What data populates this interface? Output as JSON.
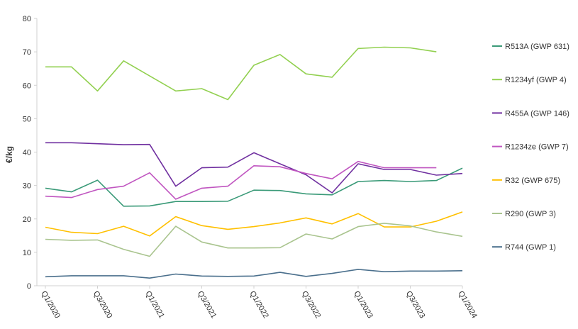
{
  "chart_data": {
    "type": "line",
    "title": "",
    "xlabel": "",
    "ylabel": "€/kg",
    "ylim": [
      0,
      80
    ],
    "yticks": [
      0,
      10,
      20,
      30,
      40,
      50,
      60,
      70,
      80
    ],
    "grid": false,
    "legend_position": "right",
    "x_tick_labels": [
      "Q1/2020",
      "Q3/2020",
      "Q1/2021",
      "Q3/2021",
      "Q1/2022",
      "Q3/2022",
      "Q1/2023",
      "Q3/2023",
      "Q1/2024"
    ],
    "x_tick_indices": [
      0,
      2,
      4,
      6,
      8,
      10,
      12,
      14,
      16
    ],
    "x_count": 17,
    "series": [
      {
        "name": "R513A (GWP 631)",
        "color": "#3a9a78",
        "values": [
          29.2,
          28.1,
          31.6,
          23.8,
          23.9,
          25.2,
          25.2,
          25.3,
          28.6,
          28.5,
          27.5,
          27.2,
          31.2,
          31.5,
          31.2,
          31.5,
          35.2
        ]
      },
      {
        "name": "R1234yf (GWP 4)",
        "color": "#92d050",
        "values": [
          65.5,
          65.5,
          58.3,
          67.3,
          62.8,
          58.3,
          59.0,
          55.7,
          66.0,
          69.2,
          63.4,
          62.4,
          71.0,
          71.4,
          71.2,
          70.0,
          null
        ]
      },
      {
        "name": "R455A (GWP 146)",
        "color": "#7030a0",
        "values": [
          42.8,
          42.8,
          42.5,
          42.2,
          42.3,
          29.8,
          35.3,
          35.5,
          39.8,
          36.5,
          33.2,
          27.8,
          36.5,
          34.8,
          34.8,
          33.1,
          33.6
        ]
      },
      {
        "name": "R1234ze (GWP 7)",
        "color": "#c055c0",
        "values": [
          26.8,
          26.4,
          28.8,
          29.8,
          33.8,
          25.9,
          29.2,
          29.8,
          35.9,
          35.6,
          33.6,
          32.0,
          37.2,
          35.3,
          35.3,
          35.3,
          null
        ]
      },
      {
        "name": "R32 (GWP 675)",
        "color": "#ffc000",
        "values": [
          17.5,
          16.0,
          15.6,
          17.8,
          14.9,
          20.7,
          18.0,
          16.9,
          17.7,
          18.8,
          20.3,
          18.5,
          21.6,
          17.6,
          17.6,
          19.3,
          22.1
        ]
      },
      {
        "name": "R290 (GWP 3)",
        "color": "#a9c48e",
        "values": [
          13.9,
          13.6,
          13.7,
          10.9,
          8.8,
          17.8,
          13.1,
          11.3,
          11.3,
          11.4,
          15.5,
          14.0,
          17.7,
          18.7,
          17.9,
          16.1,
          14.8
        ]
      },
      {
        "name": "R744 (GWP 1)",
        "color": "#4a6f8c",
        "values": [
          2.7,
          3.0,
          3.0,
          3.0,
          2.3,
          3.5,
          2.9,
          2.8,
          2.9,
          4.0,
          2.8,
          3.7,
          4.9,
          4.2,
          4.4,
          4.4,
          4.5
        ]
      }
    ]
  }
}
